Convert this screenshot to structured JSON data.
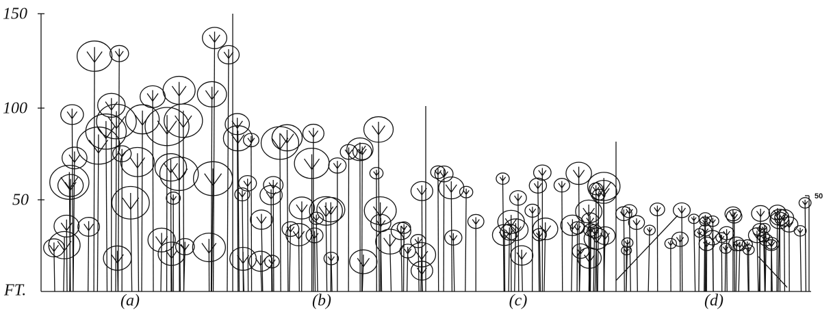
{
  "axis": {
    "labels": [
      "150",
      "100",
      "50"
    ],
    "unit": "FT."
  },
  "panels": [
    {
      "label": "(a)"
    },
    {
      "label": "(b)"
    },
    {
      "label": "(c)"
    },
    {
      "label": "(d)"
    }
  ],
  "right_axis": {
    "label": "50"
  }
}
